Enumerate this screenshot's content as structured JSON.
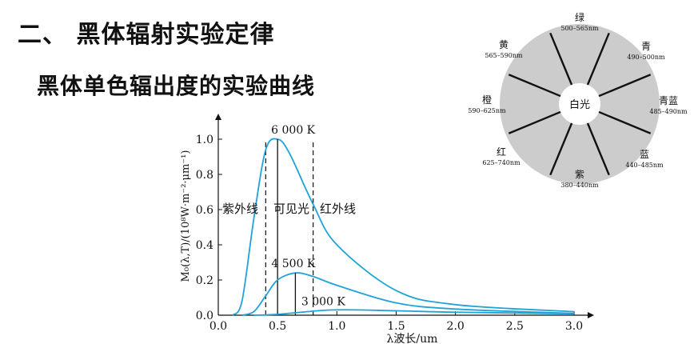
{
  "headings": {
    "section": "二、 黑体辐射实验定律",
    "subtitle": "黑体单色辐出度的实验曲线"
  },
  "chart_data": {
    "type": "line",
    "xlabel": "λ波长/um",
    "ylabel": "M₀(λ,T)/(10⁸W·m⁻²·μm⁻¹)",
    "xlim": [
      0,
      3.0
    ],
    "ylim": [
      0,
      1.15
    ],
    "xticks": [
      "0.0",
      "0.5",
      "1.0",
      "1.5",
      "2.0",
      "2.5",
      "3.0"
    ],
    "yticks": [
      "0.0",
      "0.2",
      "0.4",
      "0.6",
      "0.8",
      "1.0"
    ],
    "series": [
      {
        "name": "6 000 K",
        "temperature": 6000,
        "peak_x": 0.5,
        "peak_y": 1.0,
        "x": [
          0.12,
          0.2,
          0.3,
          0.4,
          0.5,
          0.6,
          0.8,
          1.0,
          1.5,
          2.0,
          3.0
        ],
        "y": [
          0.0,
          0.08,
          0.55,
          0.94,
          1.0,
          0.92,
          0.63,
          0.4,
          0.14,
          0.06,
          0.02
        ]
      },
      {
        "name": "4 500 K",
        "temperature": 4500,
        "peak_x": 0.65,
        "peak_y": 0.24,
        "x": [
          0.2,
          0.3,
          0.4,
          0.5,
          0.65,
          0.8,
          1.0,
          1.5,
          2.0,
          3.0
        ],
        "y": [
          0.0,
          0.02,
          0.11,
          0.2,
          0.24,
          0.22,
          0.17,
          0.07,
          0.035,
          0.01
        ]
      },
      {
        "name": "3 000 K",
        "temperature": 3000,
        "peak_x": 0.97,
        "peak_y": 0.03,
        "x": [
          0.3,
          0.5,
          0.97,
          1.5,
          2.0,
          3.0
        ],
        "y": [
          0.0,
          0.005,
          0.03,
          0.025,
          0.017,
          0.008
        ]
      }
    ],
    "regions": [
      {
        "label": "紫外线",
        "x_range": [
          0.0,
          0.4
        ]
      },
      {
        "label": "可见光",
        "x_range": [
          0.4,
          0.8
        ]
      },
      {
        "label": "红外线",
        "x_range": [
          0.8,
          3.0
        ]
      }
    ],
    "boundaries": [
      0.4,
      0.8
    ],
    "colors": {
      "curve": "#1fa3d8",
      "axis": "#111111",
      "guide": "#111111"
    }
  },
  "color_wheel": {
    "center": "白光",
    "fill": "#cccccc",
    "segments": [
      {
        "name": "绿",
        "range": "500–565nm"
      },
      {
        "name": "青",
        "range": "490–500nm"
      },
      {
        "name": "青蓝",
        "range": "485–490nm"
      },
      {
        "name": "蓝",
        "range": "440–485nm"
      },
      {
        "name": "紫",
        "range": "380–440nm"
      },
      {
        "name": "红",
        "range": "625–740nm"
      },
      {
        "name": "橙",
        "range": "590–625nm"
      },
      {
        "name": "黄",
        "range": "565–590nm"
      }
    ]
  }
}
